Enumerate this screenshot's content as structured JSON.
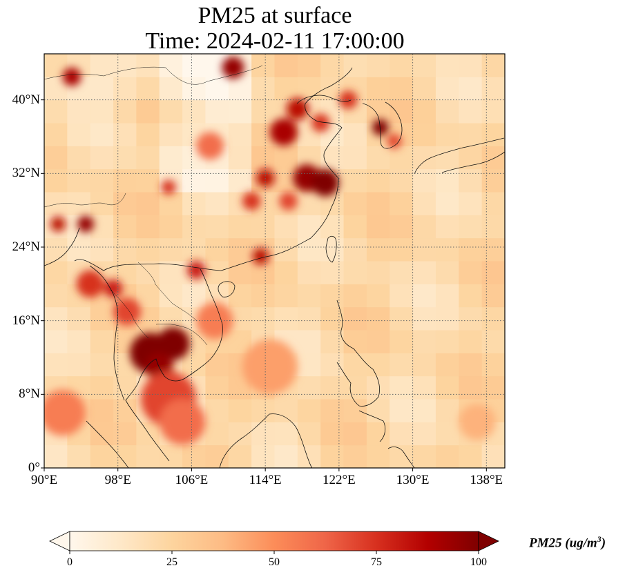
{
  "title": {
    "line1": "PM25 at surface",
    "line2": "Time: 2024-02-11 17:00:00"
  },
  "map": {
    "lon_range": [
      90,
      140
    ],
    "lat_range": [
      0,
      45
    ],
    "lat_ticks": [
      {
        "value": 40,
        "label": "40°N"
      },
      {
        "value": 32,
        "label": "32°N"
      },
      {
        "value": 24,
        "label": "24°N"
      },
      {
        "value": 16,
        "label": "16°N"
      },
      {
        "value": 8,
        "label": "8°N"
      },
      {
        "value": 0,
        "label": "0°"
      }
    ],
    "lon_ticks": [
      {
        "value": 90,
        "label": "90°E"
      },
      {
        "value": 98,
        "label": "98°E"
      },
      {
        "value": 106,
        "label": "106°E"
      },
      {
        "value": 114,
        "label": "114°E"
      },
      {
        "value": 122,
        "label": "122°E"
      },
      {
        "value": 130,
        "label": "130°E"
      },
      {
        "value": 138,
        "label": "138°E"
      }
    ],
    "gridlines": "dotted",
    "colormap": "OrRd"
  },
  "colorbar": {
    "label_main": "PM25 (ug/m",
    "label_sup": "3",
    "label_end": ")",
    "min": 0,
    "max": 100,
    "extend": "both",
    "ticks": [
      {
        "value": 0,
        "label": "0"
      },
      {
        "value": 25,
        "label": "25"
      },
      {
        "value": 50,
        "label": "50"
      },
      {
        "value": 75,
        "label": "75"
      },
      {
        "value": 100,
        "label": "100"
      }
    ],
    "colors": [
      "#fff7ec",
      "#fee8c8",
      "#fdd49e",
      "#fdbb84",
      "#fc8d59",
      "#ef6548",
      "#d7301f",
      "#b30000",
      "#7f0000"
    ]
  },
  "hotspots": [
    {
      "lon": 101.5,
      "lat": 12.5,
      "value": 100,
      "r": 2.2
    },
    {
      "lon": 104.0,
      "lat": 13.5,
      "value": 100,
      "r": 1.8
    },
    {
      "lon": 102.5,
      "lat": 11.0,
      "value": 95,
      "r": 1.5
    },
    {
      "lon": 103.5,
      "lat": 7.5,
      "value": 70,
      "r": 3.0
    },
    {
      "lon": 105.0,
      "lat": 5.0,
      "value": 60,
      "r": 2.5
    },
    {
      "lon": 94.5,
      "lat": 26.5,
      "value": 95,
      "r": 0.9
    },
    {
      "lon": 91.5,
      "lat": 26.5,
      "value": 85,
      "r": 0.8
    },
    {
      "lon": 95.0,
      "lat": 20.0,
      "value": 75,
      "r": 1.5
    },
    {
      "lon": 97.5,
      "lat": 19.5,
      "value": 80,
      "r": 1.0
    },
    {
      "lon": 99.0,
      "lat": 17.0,
      "value": 70,
      "r": 1.5
    },
    {
      "lon": 106.5,
      "lat": 21.5,
      "value": 80,
      "r": 1.0
    },
    {
      "lon": 113.5,
      "lat": 23.0,
      "value": 85,
      "r": 0.9
    },
    {
      "lon": 118.5,
      "lat": 31.5,
      "value": 95,
      "r": 1.5
    },
    {
      "lon": 120.5,
      "lat": 31.0,
      "value": 100,
      "r": 1.5
    },
    {
      "lon": 114.0,
      "lat": 31.5,
      "value": 85,
      "r": 1.0
    },
    {
      "lon": 112.5,
      "lat": 29.0,
      "value": 75,
      "r": 1.0
    },
    {
      "lon": 116.5,
      "lat": 29.0,
      "value": 70,
      "r": 1.0
    },
    {
      "lon": 116.0,
      "lat": 36.5,
      "value": 90,
      "r": 1.5
    },
    {
      "lon": 117.5,
      "lat": 39.0,
      "value": 85,
      "r": 1.2
    },
    {
      "lon": 120.0,
      "lat": 37.5,
      "value": 75,
      "r": 1.0
    },
    {
      "lon": 126.5,
      "lat": 37.0,
      "value": 100,
      "r": 0.9
    },
    {
      "lon": 128.0,
      "lat": 35.5,
      "value": 70,
      "r": 0.8
    },
    {
      "lon": 108.0,
      "lat": 35.0,
      "value": 60,
      "r": 1.5
    },
    {
      "lon": 103.5,
      "lat": 30.5,
      "value": 75,
      "r": 0.8
    },
    {
      "lon": 110.5,
      "lat": 43.5,
      "value": 95,
      "r": 1.2
    },
    {
      "lon": 93.0,
      "lat": 42.5,
      "value": 90,
      "r": 1.0
    },
    {
      "lon": 108.5,
      "lat": 16.0,
      "value": 55,
      "r": 2.0
    },
    {
      "lon": 92.0,
      "lat": 6.0,
      "value": 55,
      "r": 2.5
    },
    {
      "lon": 123.0,
      "lat": 40.0,
      "value": 75,
      "r": 1.0
    },
    {
      "lon": 137.0,
      "lat": 5.0,
      "value": 40,
      "r": 2.0
    },
    {
      "lon": 114.5,
      "lat": 11.0,
      "value": 45,
      "r": 3.0
    }
  ]
}
